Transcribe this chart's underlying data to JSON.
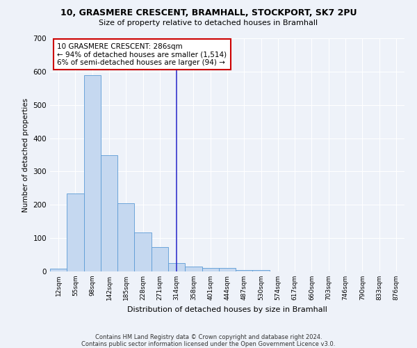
{
  "title1": "10, GRASMERE CRESCENT, BRAMHALL, STOCKPORT, SK7 2PU",
  "title2": "Size of property relative to detached houses in Bramhall",
  "xlabel": "Distribution of detached houses by size in Bramhall",
  "ylabel": "Number of detached properties",
  "footnote1": "Contains HM Land Registry data © Crown copyright and database right 2024.",
  "footnote2": "Contains public sector information licensed under the Open Government Licence v3.0.",
  "bar_labels": [
    "12sqm",
    "55sqm",
    "98sqm",
    "142sqm",
    "185sqm",
    "228sqm",
    "271sqm",
    "314sqm",
    "358sqm",
    "401sqm",
    "444sqm",
    "487sqm",
    "530sqm",
    "574sqm",
    "617sqm",
    "660sqm",
    "703sqm",
    "746sqm",
    "790sqm",
    "833sqm",
    "876sqm"
  ],
  "bar_values": [
    8,
    235,
    590,
    350,
    205,
    118,
    73,
    25,
    15,
    10,
    10,
    5,
    5,
    0,
    0,
    0,
    0,
    0,
    0,
    0,
    0
  ],
  "bar_color": "#c5d8f0",
  "bar_edge_color": "#5b9bd5",
  "background_color": "#eef2f9",
  "grid_color": "#ffffff",
  "annotation_line1": "10 GRASMERE CRESCENT: 286sqm",
  "annotation_line2": "← 94% of detached houses are smaller (1,514)",
  "annotation_line3": "6% of semi-detached houses are larger (94) →",
  "annotation_box_facecolor": "#ffffff",
  "annotation_box_edgecolor": "#cc0000",
  "vline_color": "#3333cc",
  "vline_x": 7.0,
  "ylim": [
    0,
    700
  ],
  "yticks": [
    0,
    100,
    200,
    300,
    400,
    500,
    600,
    700
  ]
}
